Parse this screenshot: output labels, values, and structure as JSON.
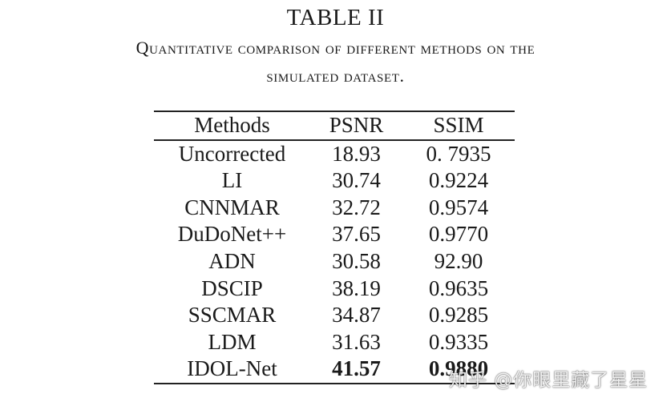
{
  "table_number": "TABLE II",
  "caption": {
    "line1": "Quantitative comparison of different methods on the",
    "line2": "simulated dataset."
  },
  "columns": [
    "Methods",
    "PSNR",
    "SSIM"
  ],
  "rows": [
    {
      "method": "Uncorrected",
      "psnr": "18.93",
      "ssim": "0. 7935"
    },
    {
      "method": "LI",
      "psnr": "30.74",
      "ssim": "0.9224"
    },
    {
      "method": "CNNMAR",
      "psnr": "32.72",
      "ssim": "0.9574"
    },
    {
      "method": "DuDoNet++",
      "psnr": "37.65",
      "ssim": "0.9770"
    },
    {
      "method": "ADN",
      "psnr": "30.58",
      "ssim": "92.90"
    },
    {
      "method": "DSCIP",
      "psnr": "38.19",
      "ssim": "0.9635"
    },
    {
      "method": "SSCMAR",
      "psnr": "34.87",
      "ssim": "0.9285"
    },
    {
      "method": "LDM",
      "psnr": "31.63",
      "ssim": "0.9335"
    },
    {
      "method": "IDOL-Net",
      "psnr": "41.57",
      "ssim": "0.9880"
    }
  ],
  "best_row": "IDOL-Net",
  "watermark": "知乎 @你眼里藏了星星"
}
